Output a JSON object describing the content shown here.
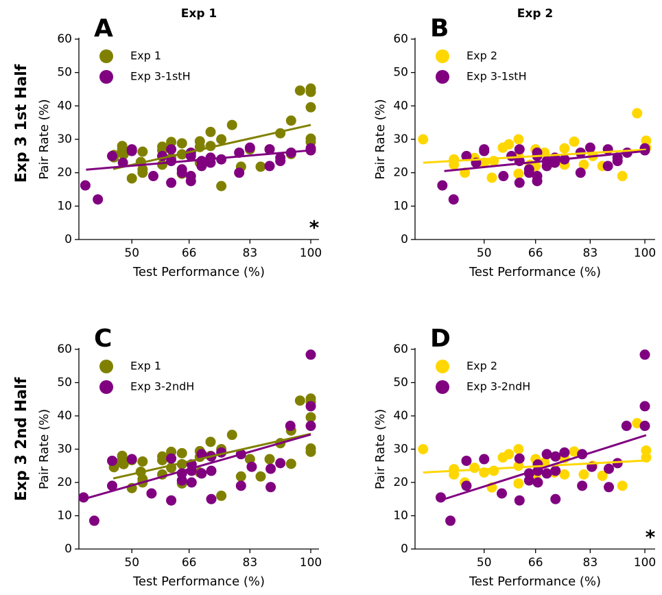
{
  "column_titles": [
    "Exp 1",
    "Exp 2"
  ],
  "row_labels": [
    "Exp 3 1st Half",
    "Exp 3 2nd Half"
  ],
  "chart_data": [
    {
      "type": "scatter",
      "panel": "A",
      "xlabel": "Test Performance (%)",
      "ylabel": "Pair Rate (%)",
      "annotation": "*",
      "xlim": [
        35.2,
        102.3
      ],
      "ylim": [
        0,
        60
      ],
      "xticks": [
        50,
        66,
        83,
        100
      ],
      "yticks": [
        0,
        10,
        20,
        30,
        40,
        50,
        60
      ],
      "legend": "upper left",
      "series": [
        {
          "name": "Exp 1",
          "color": "#808000",
          "x": [
            45,
            45,
            47.3,
            47.3,
            47.7,
            50,
            50,
            52.5,
            53,
            53,
            53,
            58.5,
            58.5,
            58.5,
            61,
            61,
            64,
            64,
            64,
            69,
            69,
            69,
            72,
            75,
            75,
            78,
            80.5,
            86,
            91.5,
            94.5,
            97,
            100,
            100,
            100,
            100,
            100,
            94.5,
            88.5,
            83,
            72
          ],
          "y": [
            25.3,
            24.6,
            28,
            27,
            25.5,
            26.7,
            18.3,
            23.2,
            26.3,
            21,
            20,
            27.8,
            26.7,
            22.4,
            29.2,
            24.4,
            28.8,
            25.5,
            19.7,
            29.4,
            27.7,
            23,
            32.2,
            30,
            16,
            34.3,
            21.8,
            21.8,
            31.8,
            35.6,
            44.6,
            45.2,
            44.2,
            39.6,
            30.2,
            29.2,
            25.6,
            27,
            27,
            28
          ],
          "fit": {
            "x": [
              44.8,
              100
            ],
            "y": [
              21.1,
              34.3
            ]
          }
        },
        {
          "name": "Exp 3-1stH",
          "color": "#800080",
          "x": [
            37,
            40.5,
            44.5,
            50,
            50,
            56,
            61,
            61,
            61,
            64,
            64,
            66.5,
            66.5,
            66.5,
            66.5,
            69.5,
            69.5,
            72,
            72,
            75,
            80,
            80,
            83,
            88.5,
            88.5,
            91.5,
            91.5,
            94.5,
            100,
            100,
            47.5,
            58.5
          ],
          "y": [
            16.2,
            12,
            25,
            27,
            26.5,
            19,
            27,
            23.5,
            17,
            21,
            20,
            26,
            25,
            19,
            17.5,
            23.5,
            22,
            24.5,
            23,
            24,
            26,
            20,
            27.5,
            27,
            22,
            24.5,
            23.5,
            26,
            26.7,
            27.3,
            23,
            25
          ],
          "fit": {
            "x": [
              37.2,
              100
            ],
            "y": [
              20.9,
              26.7
            ]
          }
        }
      ]
    },
    {
      "type": "scatter",
      "panel": "B",
      "xlabel": "Test Performance (%)",
      "ylabel": "Pair Rate (%)",
      "xlim": [
        28.5,
        103.2
      ],
      "ylim": [
        0,
        60
      ],
      "xticks": [
        50,
        66,
        83,
        100
      ],
      "yticks": [
        0,
        10,
        20,
        30,
        40,
        50,
        60
      ],
      "legend": "upper left",
      "series": [
        {
          "name": "Exp 2",
          "color": "#FFD700",
          "x": [
            31,
            40.6,
            40.6,
            44,
            47,
            50,
            52.4,
            53,
            55.8,
            57.7,
            60.7,
            60.7,
            60.7,
            64.3,
            66,
            66,
            68.8,
            71.8,
            75,
            75,
            78,
            81,
            83.8,
            86.8,
            93,
            97.6,
            100.4,
            100.4
          ],
          "y": [
            30,
            24,
            22.4,
            20,
            24.4,
            23,
            18.5,
            23.5,
            27.5,
            28.5,
            30,
            25,
            19.7,
            22.4,
            27,
            22,
            26,
            23,
            27.3,
            22.4,
            29.3,
            22.4,
            25,
            22,
            19,
            37.8,
            29.6,
            27.5
          ],
          "fit": {
            "x": [
              31,
              100.4
            ],
            "y": [
              23,
              26.9
            ]
          }
        },
        {
          "name": "Exp 3-1stH",
          "color": "#800080",
          "x": [
            37,
            40.5,
            44.5,
            50,
            50,
            56,
            61,
            61,
            61,
            64,
            64,
            66.5,
            66.5,
            66.5,
            66.5,
            69.5,
            69.5,
            72,
            72,
            75,
            80,
            80,
            83,
            88.5,
            88.5,
            91.5,
            91.5,
            94.5,
            100,
            100,
            47.5,
            58.5
          ],
          "y": [
            16.2,
            12,
            25,
            27,
            26.5,
            19,
            27,
            23.5,
            17,
            21,
            20,
            26,
            25,
            19,
            17.5,
            23.5,
            22,
            24.5,
            23,
            24,
            26,
            20,
            27.5,
            27,
            22,
            24.5,
            23.5,
            26,
            26.7,
            27.3,
            23,
            25
          ],
          "fit": {
            "x": [
              37.6,
              100.4
            ],
            "y": [
              20.5,
              26.5
            ]
          }
        }
      ]
    },
    {
      "type": "scatter",
      "panel": "C",
      "xlabel": "Test Performance (%)",
      "ylabel": "Pair Rate (%)",
      "xlim": [
        35.2,
        102.3
      ],
      "ylim": [
        0,
        60
      ],
      "xticks": [
        50,
        66,
        83,
        100
      ],
      "yticks": [
        0,
        10,
        20,
        30,
        40,
        50,
        60
      ],
      "legend": "upper left",
      "series": [
        {
          "name": "Exp 1",
          "color": "#808000",
          "x": [
            45,
            45,
            47.3,
            47.3,
            47.7,
            50,
            50,
            52.5,
            53,
            53,
            53,
            58.5,
            58.5,
            58.5,
            61,
            61,
            64,
            64,
            64,
            69,
            69,
            69,
            72,
            75,
            75,
            78,
            80.5,
            86,
            91.5,
            94.5,
            97,
            100,
            100,
            100,
            100,
            100,
            94.5,
            88.5,
            83,
            72
          ],
          "y": [
            25.3,
            24.6,
            28,
            27,
            25.5,
            26.7,
            18.3,
            23.2,
            26.3,
            21,
            20,
            27.8,
            26.7,
            22.4,
            29.2,
            24.4,
            28.8,
            25.5,
            19.7,
            29.4,
            27.7,
            23,
            32.2,
            30,
            16,
            34.3,
            21.8,
            21.8,
            31.8,
            35.6,
            44.6,
            45.2,
            44.2,
            39.6,
            30.2,
            29.2,
            25.6,
            27,
            27,
            28
          ],
          "fit": {
            "x": [
              44.8,
              100
            ],
            "y": [
              21.2,
              34.6
            ]
          }
        },
        {
          "name": "Exp 3-2ndH",
          "color": "#800080",
          "x": [
            36.5,
            39.5,
            44.5,
            44.5,
            50,
            55.5,
            61,
            61,
            64,
            64,
            66.7,
            66.7,
            66.7,
            69.5,
            69.5,
            72.2,
            72.2,
            72.2,
            75,
            80.5,
            80.5,
            83.5,
            88.8,
            88.8,
            91.5,
            94.3,
            100,
            100,
            100
          ],
          "y": [
            15.5,
            8.5,
            26.5,
            19,
            27,
            16.7,
            14.6,
            27.2,
            22.7,
            20.6,
            25.4,
            23.5,
            20,
            28.5,
            22.7,
            23.5,
            15,
            27.8,
            29,
            28.5,
            19,
            24.7,
            24.1,
            18.6,
            25.8,
            37,
            58.4,
            42.9,
            37
          ],
          "fit": {
            "x": [
              36.5,
              100
            ],
            "y": [
              15,
              34.4
            ]
          }
        }
      ]
    },
    {
      "type": "scatter",
      "panel": "D",
      "xlabel": "Test Performance (%)",
      "ylabel": "Pair Rate (%)",
      "annotation": "*",
      "xlim": [
        28.5,
        103.2
      ],
      "ylim": [
        0,
        60
      ],
      "xticks": [
        50,
        66,
        83,
        100
      ],
      "yticks": [
        0,
        10,
        20,
        30,
        40,
        50,
        60
      ],
      "legend": "upper left",
      "series": [
        {
          "name": "Exp 2",
          "color": "#FFD700",
          "x": [
            31,
            40.6,
            40.6,
            44,
            47,
            50,
            52.4,
            53,
            55.8,
            57.7,
            60.7,
            60.7,
            60.7,
            64.3,
            66,
            66,
            68.8,
            71.8,
            75,
            75,
            78,
            81,
            83.8,
            86.8,
            93,
            97.6,
            100.4,
            100.4
          ],
          "y": [
            30,
            24,
            22.4,
            20,
            24.4,
            23,
            18.5,
            23.5,
            27.5,
            28.5,
            30,
            25,
            19.7,
            22.4,
            27,
            22,
            26,
            23,
            27.3,
            22.4,
            29.3,
            22.4,
            25,
            22,
            19,
            37.8,
            29.6,
            27.5
          ],
          "fit": {
            "x": [
              31,
              100.4
            ],
            "y": [
              23,
              26.6
            ]
          }
        },
        {
          "name": "Exp 3-2ndH",
          "color": "#800080",
          "x": [
            36.5,
            39.5,
            44.5,
            44.5,
            50,
            55.5,
            61,
            61,
            64,
            64,
            66.7,
            66.7,
            66.7,
            69.5,
            69.5,
            72.2,
            72.2,
            72.2,
            75,
            80.5,
            80.5,
            83.5,
            88.8,
            88.8,
            91.5,
            94.3,
            100,
            100,
            100
          ],
          "y": [
            15.5,
            8.5,
            26.5,
            19,
            27,
            16.7,
            14.6,
            27.2,
            22.7,
            20.6,
            25.4,
            23.5,
            20,
            28.5,
            22.7,
            23.5,
            15,
            27.8,
            29,
            28.5,
            19,
            24.7,
            24.1,
            18.6,
            25.8,
            37,
            58.4,
            42.9,
            37
          ],
          "fit": {
            "x": [
              37.6,
              100.4
            ],
            "y": [
              15,
              34.2
            ]
          }
        }
      ]
    }
  ]
}
